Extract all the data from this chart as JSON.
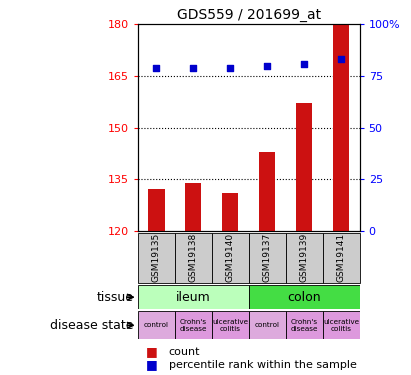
{
  "title": "GDS559 / 201699_at",
  "samples": [
    "GSM19135",
    "GSM19138",
    "GSM19140",
    "GSM19137",
    "GSM19139",
    "GSM19141"
  ],
  "bar_values": [
    132,
    134,
    131,
    143,
    157,
    180
  ],
  "percentile_values": [
    79,
    79,
    79,
    80,
    81,
    83
  ],
  "ylim_left": [
    120,
    180
  ],
  "ylim_right": [
    0,
    100
  ],
  "yticks_left": [
    120,
    135,
    150,
    165,
    180
  ],
  "yticks_right": [
    0,
    25,
    50,
    75,
    100
  ],
  "ytick_labels_right": [
    "0",
    "25",
    "50",
    "75",
    "100%"
  ],
  "bar_color": "#cc1111",
  "scatter_color": "#0000cc",
  "tissue_ileum_color": "#bbffbb",
  "tissue_colon_color": "#44dd44",
  "disease_color": "#dd99dd",
  "control_color": "#ddaadd",
  "disease_labels": [
    "control",
    "Crohn's\ndisease",
    "ulcerative\ncolitis",
    "control",
    "Crohn's\ndisease",
    "ulcerative\ncolitis"
  ],
  "tissue_row_label": "tissue",
  "disease_row_label": "disease state",
  "legend_bar_label": "count",
  "legend_scatter_label": "percentile rank within the sample",
  "sample_bg_color": "#cccccc"
}
